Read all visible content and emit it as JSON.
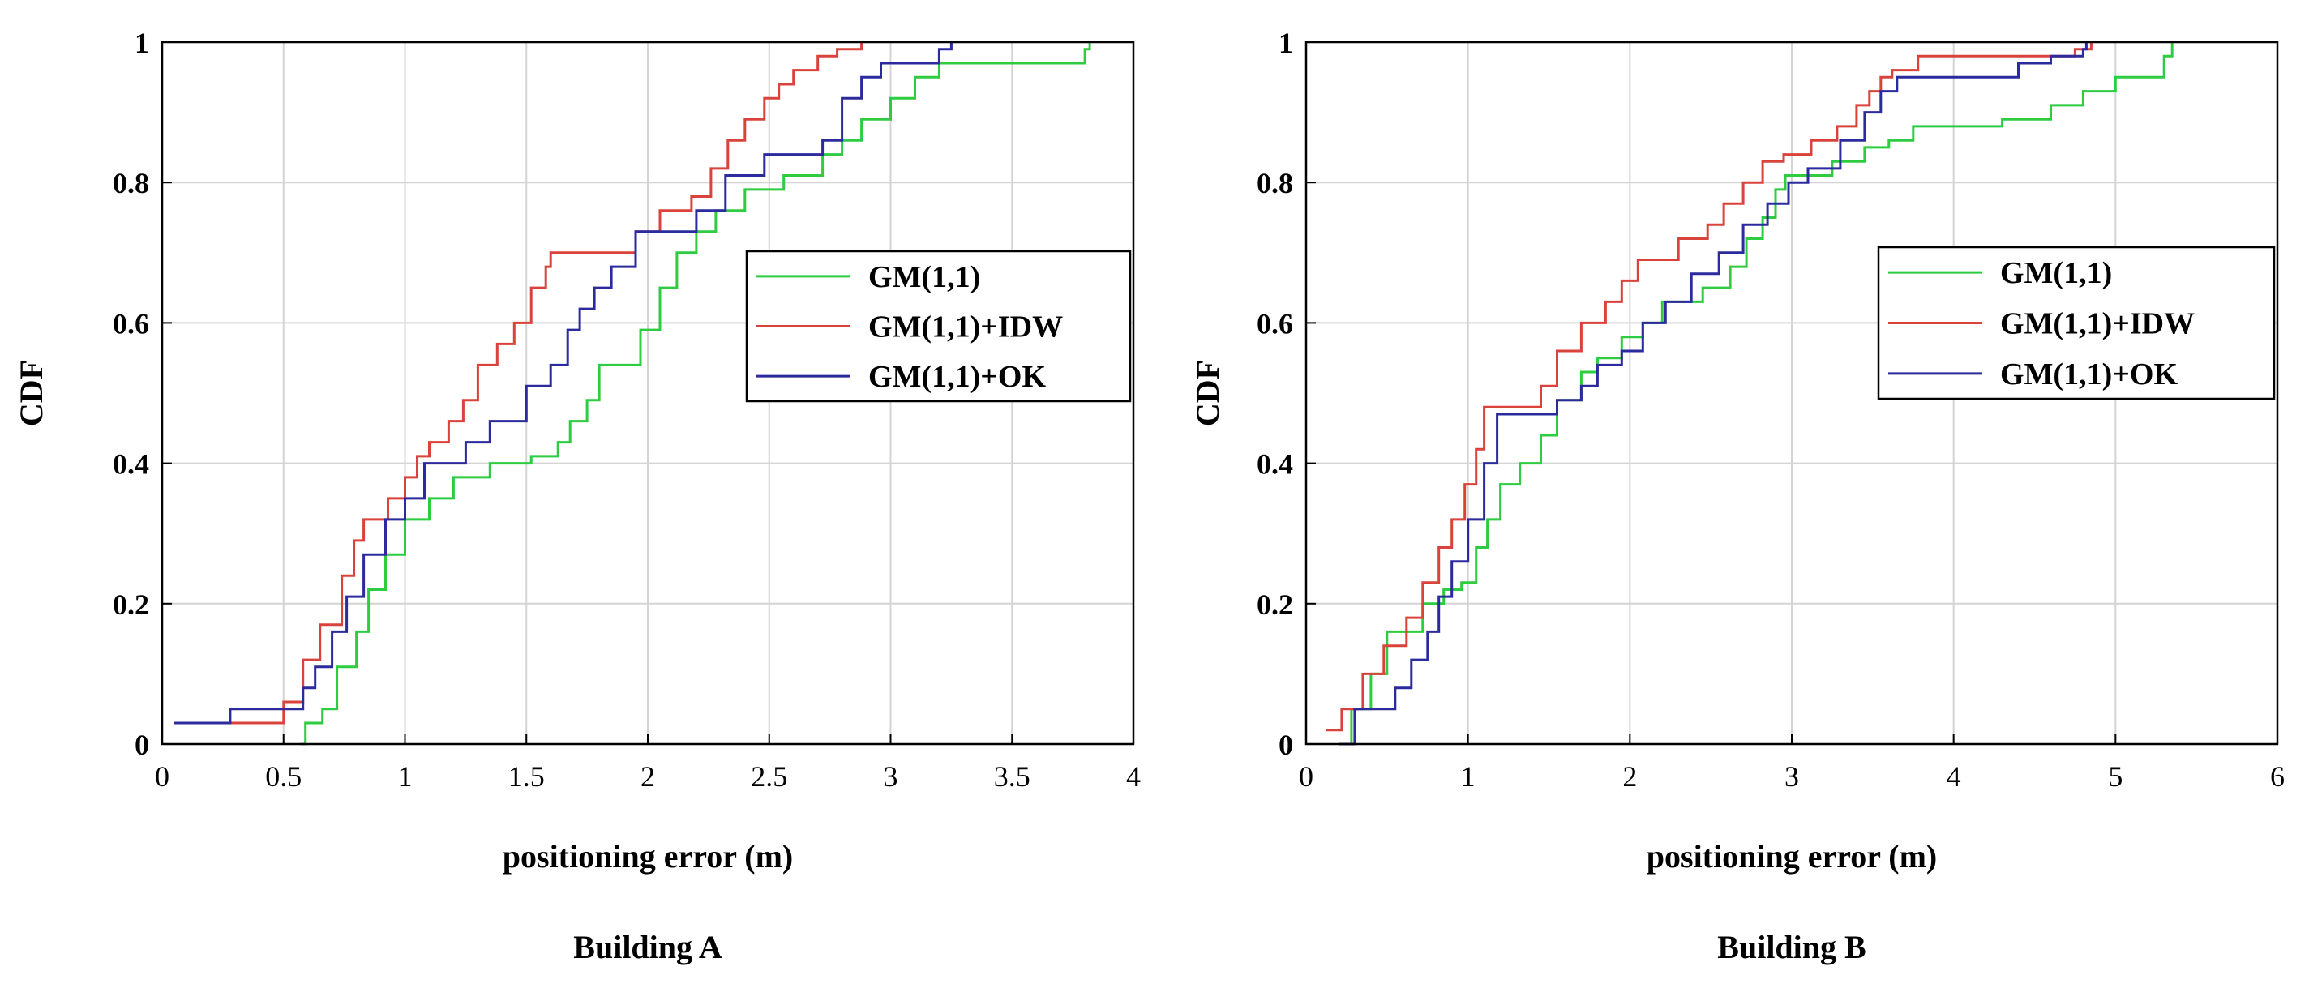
{
  "figure": {
    "colors": {
      "GM(1,1)": "#2ecc40",
      "GM(1,1)+IDW": "#d9433b",
      "GM(1,1)+OK": "#2b2b9e"
    }
  },
  "chart_data": [
    {
      "type": "line",
      "title": "Building A",
      "xlabel": "positioning error (m)",
      "ylabel": "CDF",
      "xlim": [
        0,
        4
      ],
      "ylim": [
        0,
        1
      ],
      "xticks": [
        "0",
        "0.5",
        "1",
        "1.5",
        "2",
        "2.5",
        "3",
        "3.5",
        "4"
      ],
      "yticks": [
        "0",
        "0.2",
        "0.4",
        "0.6",
        "0.8",
        "1"
      ],
      "grid": true,
      "legend": "center-right",
      "series": [
        {
          "name": "GM(1,1)",
          "color": "#2ecc40",
          "x": [
            0.57,
            0.59,
            0.66,
            0.72,
            0.8,
            0.85,
            0.92,
            1.0,
            1.1,
            1.2,
            1.35,
            1.52,
            1.63,
            1.68,
            1.75,
            1.8,
            1.97,
            2.05,
            2.12,
            2.2,
            2.28,
            2.4,
            2.56,
            2.65,
            2.72,
            2.8,
            2.88,
            3.0,
            3.1,
            3.2,
            3.4,
            3.7,
            3.8,
            3.82
          ],
          "y": [
            0.0,
            0.03,
            0.05,
            0.11,
            0.16,
            0.22,
            0.27,
            0.32,
            0.35,
            0.38,
            0.4,
            0.41,
            0.43,
            0.46,
            0.49,
            0.54,
            0.59,
            0.65,
            0.7,
            0.73,
            0.76,
            0.79,
            0.81,
            0.81,
            0.84,
            0.86,
            0.89,
            0.92,
            0.95,
            0.97,
            0.97,
            0.97,
            0.99,
            1.0
          ]
        },
        {
          "name": "GM(1,1)+IDW",
          "color": "#d9433b",
          "x": [
            0.07,
            0.17,
            0.5,
            0.58,
            0.65,
            0.74,
            0.79,
            0.83,
            0.93,
            1.0,
            1.05,
            1.1,
            1.18,
            1.24,
            1.3,
            1.38,
            1.45,
            1.52,
            1.58,
            1.6,
            1.82,
            1.95,
            2.05,
            2.18,
            2.26,
            2.33,
            2.4,
            2.48,
            2.54,
            2.6,
            2.7,
            2.78,
            2.88
          ],
          "y": [
            0.03,
            0.03,
            0.06,
            0.12,
            0.17,
            0.24,
            0.29,
            0.32,
            0.35,
            0.38,
            0.41,
            0.43,
            0.46,
            0.49,
            0.54,
            0.57,
            0.6,
            0.65,
            0.68,
            0.7,
            0.7,
            0.73,
            0.76,
            0.78,
            0.82,
            0.86,
            0.89,
            0.92,
            0.94,
            0.96,
            0.98,
            0.99,
            1.0
          ]
        },
        {
          "name": "GM(1,1)+OK",
          "color": "#2b2b9e",
          "x": [
            0.05,
            0.28,
            0.58,
            0.63,
            0.7,
            0.76,
            0.83,
            0.92,
            1.0,
            1.08,
            1.25,
            1.35,
            1.5,
            1.6,
            1.67,
            1.72,
            1.78,
            1.85,
            1.95,
            2.05,
            2.2,
            2.32,
            2.48,
            2.72,
            2.8,
            2.88,
            2.96,
            3.05,
            3.2,
            3.25
          ],
          "y": [
            0.03,
            0.05,
            0.08,
            0.11,
            0.16,
            0.21,
            0.27,
            0.32,
            0.35,
            0.4,
            0.43,
            0.46,
            0.51,
            0.54,
            0.59,
            0.62,
            0.65,
            0.68,
            0.73,
            0.73,
            0.76,
            0.81,
            0.84,
            0.86,
            0.92,
            0.95,
            0.97,
            0.97,
            0.99,
            1.0
          ]
        }
      ]
    },
    {
      "type": "line",
      "title": "Building B",
      "xlabel": "positioning error (m)",
      "ylabel": "CDF",
      "xlim": [
        0,
        6
      ],
      "ylim": [
        0,
        1
      ],
      "xticks": [
        "0",
        "1",
        "2",
        "3",
        "4",
        "5",
        "6"
      ],
      "yticks": [
        "0",
        "0.2",
        "0.4",
        "0.6",
        "0.8",
        "1"
      ],
      "grid": true,
      "legend": "center-right",
      "series": [
        {
          "name": "GM(1,1)",
          "color": "#2ecc40",
          "x": [
            0.21,
            0.28,
            0.4,
            0.5,
            0.6,
            0.72,
            0.85,
            0.96,
            1.05,
            1.12,
            1.2,
            1.32,
            1.45,
            1.55,
            1.7,
            1.8,
            1.95,
            2.08,
            2.2,
            2.45,
            2.62,
            2.72,
            2.82,
            2.9,
            2.96,
            3.25,
            3.45,
            3.6,
            3.75,
            4.2,
            4.3,
            4.6,
            4.8,
            5.0,
            5.3,
            5.35
          ],
          "y": [
            0.0,
            0.05,
            0.1,
            0.16,
            0.16,
            0.2,
            0.22,
            0.23,
            0.28,
            0.32,
            0.37,
            0.4,
            0.44,
            0.49,
            0.53,
            0.55,
            0.58,
            0.6,
            0.63,
            0.65,
            0.68,
            0.72,
            0.75,
            0.79,
            0.81,
            0.83,
            0.85,
            0.86,
            0.88,
            0.88,
            0.89,
            0.91,
            0.93,
            0.95,
            0.98,
            1.0
          ]
        },
        {
          "name": "GM(1,1)+IDW",
          "color": "#d9433b",
          "x": [
            0.12,
            0.22,
            0.35,
            0.48,
            0.62,
            0.72,
            0.82,
            0.9,
            0.98,
            1.05,
            1.1,
            1.45,
            1.55,
            1.7,
            1.85,
            1.95,
            2.05,
            2.3,
            2.48,
            2.58,
            2.7,
            2.82,
            2.95,
            3.12,
            3.28,
            3.4,
            3.48,
            3.55,
            3.62,
            3.78,
            4.0,
            4.5,
            4.75,
            4.85
          ],
          "y": [
            0.02,
            0.05,
            0.1,
            0.14,
            0.18,
            0.23,
            0.28,
            0.32,
            0.37,
            0.42,
            0.48,
            0.51,
            0.56,
            0.6,
            0.63,
            0.66,
            0.69,
            0.72,
            0.74,
            0.77,
            0.8,
            0.83,
            0.84,
            0.86,
            0.88,
            0.91,
            0.93,
            0.95,
            0.96,
            0.98,
            0.98,
            0.98,
            0.99,
            1.0
          ]
        },
        {
          "name": "GM(1,1)+OK",
          "color": "#2b2b9e",
          "x": [
            0.2,
            0.3,
            0.55,
            0.65,
            0.75,
            0.82,
            0.9,
            1.0,
            1.1,
            1.18,
            1.45,
            1.55,
            1.7,
            1.8,
            1.95,
            2.08,
            2.22,
            2.38,
            2.55,
            2.7,
            2.85,
            2.98,
            3.1,
            3.3,
            3.45,
            3.55,
            3.65,
            3.8,
            4.0,
            4.4,
            4.6,
            4.8,
            4.82
          ],
          "y": [
            0.0,
            0.05,
            0.08,
            0.12,
            0.16,
            0.21,
            0.26,
            0.32,
            0.4,
            0.47,
            0.47,
            0.49,
            0.51,
            0.54,
            0.56,
            0.6,
            0.63,
            0.67,
            0.7,
            0.74,
            0.77,
            0.8,
            0.82,
            0.86,
            0.9,
            0.93,
            0.95,
            0.95,
            0.95,
            0.97,
            0.98,
            0.99,
            1.0
          ]
        }
      ]
    }
  ]
}
